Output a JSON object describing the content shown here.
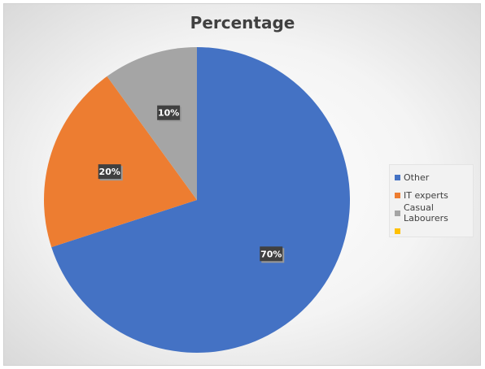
{
  "chart_data": {
    "type": "pie",
    "title": "Percentage",
    "categories": [
      "Other",
      "IT experts",
      "Casual Labourers",
      ""
    ],
    "values": [
      70,
      20,
      10,
      0
    ],
    "data_labels": [
      "70%",
      "20%",
      "10%",
      ""
    ],
    "colors": [
      "#4472c4",
      "#ed7d31",
      "#a5a5a5",
      "#ffc000"
    ],
    "legend_position": "right"
  }
}
